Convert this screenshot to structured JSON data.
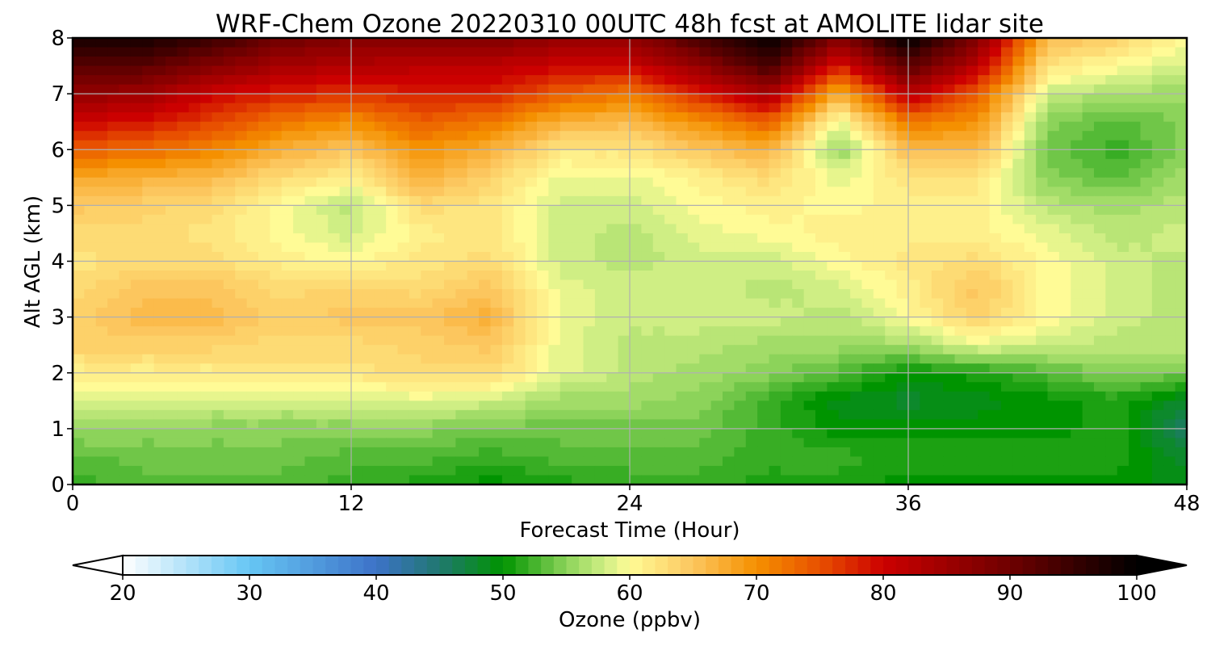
{
  "chart_data": {
    "type": "heatmap",
    "title": "WRF-Chem Ozone  20220310 00UTC 48h fcst at AMOLITE lidar site",
    "xlabel": "Forecast Time (Hour)",
    "ylabel": "Alt AGL (km)",
    "xlim": [
      0,
      48
    ],
    "ylim": [
      0,
      8
    ],
    "xticks": [
      "0",
      "12",
      "24",
      "36",
      "48"
    ],
    "yticks": [
      "0",
      "1",
      "2",
      "3",
      "4",
      "5",
      "6",
      "7",
      "8"
    ],
    "grid": true,
    "x": [
      0,
      3,
      6,
      9,
      12,
      15,
      18,
      21,
      24,
      27,
      30,
      33,
      36,
      39,
      42,
      45,
      48
    ],
    "y": [
      0,
      0.5,
      1,
      1.5,
      2,
      2.5,
      3,
      3.5,
      4,
      4.5,
      5,
      5.5,
      6,
      6.5,
      7,
      7.5,
      8
    ],
    "z": [
      [
        52,
        53,
        53,
        53,
        52,
        51,
        50,
        51,
        52,
        52,
        51,
        51,
        50,
        50,
        50,
        50,
        49
      ],
      [
        53,
        54,
        54,
        54,
        53,
        53,
        52,
        53,
        53,
        53,
        52,
        52,
        51,
        51,
        51,
        51,
        48
      ],
      [
        56,
        55,
        55,
        55,
        55,
        55,
        54,
        54,
        54,
        54,
        52,
        50,
        50,
        50,
        50,
        51,
        45
      ],
      [
        59,
        59,
        58,
        58,
        58,
        59,
        58,
        56,
        56,
        55,
        52,
        49,
        48,
        49,
        50,
        51,
        48
      ],
      [
        61,
        61,
        61,
        62,
        62,
        63,
        63,
        59,
        57,
        56,
        55,
        53,
        50,
        51,
        53,
        55,
        54
      ],
      [
        64,
        64,
        64,
        63,
        63,
        64,
        65,
        59,
        57,
        57,
        56,
        56,
        56,
        59,
        58,
        57,
        57
      ],
      [
        64,
        66,
        66,
        64,
        65,
        65,
        67,
        59,
        58,
        58,
        58,
        57,
        60,
        64,
        60,
        58,
        57
      ],
      [
        63,
        65,
        65,
        63,
        64,
        63,
        65,
        59,
        58,
        58,
        57,
        58,
        61,
        65,
        60,
        58,
        57
      ],
      [
        62,
        63,
        63,
        61,
        60,
        62,
        63,
        58,
        57,
        58,
        58,
        60,
        62,
        63,
        60,
        58,
        57
      ],
      [
        63,
        63,
        62,
        60,
        58,
        61,
        62,
        58,
        57,
        59,
        60,
        61,
        61,
        61,
        59,
        57,
        58
      ],
      [
        65,
        64,
        63,
        60,
        57,
        63,
        62,
        58,
        58,
        60,
        61,
        60,
        61,
        61,
        57,
        56,
        57
      ],
      [
        68,
        67,
        66,
        63,
        61,
        67,
        64,
        59,
        59,
        61,
        63,
        59,
        62,
        62,
        55,
        53,
        56
      ],
      [
        74,
        73,
        71,
        67,
        65,
        70,
        67,
        62,
        62,
        65,
        67,
        55,
        66,
        66,
        54,
        52,
        55
      ],
      [
        80,
        79,
        76,
        72,
        70,
        74,
        72,
        67,
        66,
        70,
        74,
        59,
        72,
        70,
        55,
        53,
        55
      ],
      [
        86,
        85,
        80,
        78,
        77,
        78,
        78,
        74,
        72,
        78,
        84,
        67,
        82,
        74,
        58,
        56,
        56
      ],
      [
        92,
        92,
        88,
        84,
        83,
        82,
        82,
        80,
        80,
        86,
        94,
        78,
        92,
        82,
        62,
        60,
        58
      ],
      [
        98,
        98,
        95,
        90,
        88,
        88,
        88,
        86,
        86,
        94,
        100,
        88,
        100,
        88,
        66,
        64,
        60
      ]
    ],
    "colorbar": {
      "label": "Ozone  (ppbv)",
      "min": 20,
      "max": 100,
      "ticks": [
        "20",
        "30",
        "40",
        "50",
        "60",
        "70",
        "80",
        "90",
        "100"
      ],
      "extend": "both",
      "stops": [
        {
          "v": 20,
          "c": "#ffffff"
        },
        {
          "v": 30,
          "c": "#66c6f4"
        },
        {
          "v": 40,
          "c": "#3d72c8"
        },
        {
          "v": 45,
          "c": "#20786f"
        },
        {
          "v": 50,
          "c": "#009400"
        },
        {
          "v": 55,
          "c": "#8cd35a"
        },
        {
          "v": 58,
          "c": "#cfee84"
        },
        {
          "v": 60,
          "c": "#fffb96"
        },
        {
          "v": 65,
          "c": "#fcc65e"
        },
        {
          "v": 70,
          "c": "#f59000"
        },
        {
          "v": 75,
          "c": "#e85000"
        },
        {
          "v": 80,
          "c": "#cc0000"
        },
        {
          "v": 90,
          "c": "#6e0000"
        },
        {
          "v": 100,
          "c": "#000000"
        }
      ]
    }
  }
}
